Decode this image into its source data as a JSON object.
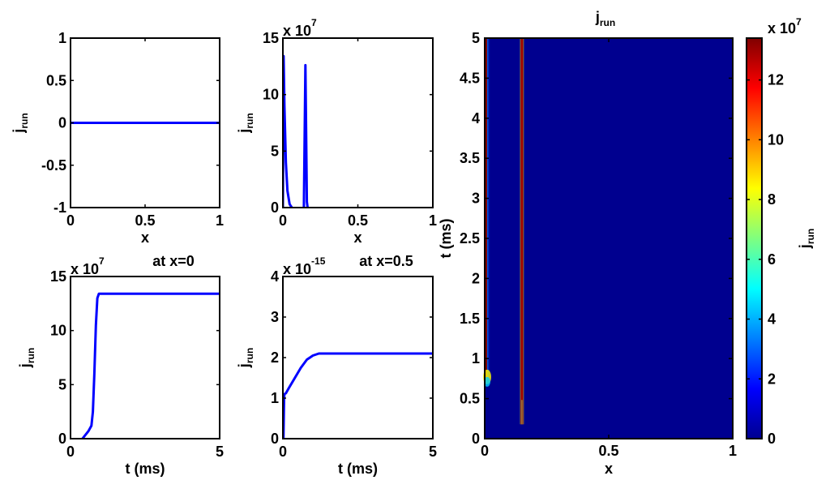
{
  "chart_data": [
    {
      "type": "line",
      "panel": "top-left",
      "title": "",
      "xlabel": "x",
      "ylabel": "j",
      "ylabel_sub": "run",
      "xlim": [
        0,
        1
      ],
      "ylim": [
        -1,
        1
      ],
      "xticks": [
        "0",
        "0.5",
        "1"
      ],
      "yticks": [
        "-1",
        "-0.5",
        "0",
        "0.5",
        "1"
      ],
      "exponent": null,
      "color": "#0000ff",
      "series": [
        {
          "x": [
            0,
            1
          ],
          "y": [
            0,
            0
          ]
        }
      ]
    },
    {
      "type": "line",
      "panel": "top-middle",
      "title": "",
      "xlabel": "x",
      "ylabel": "j",
      "ylabel_sub": "run",
      "xlim": [
        0,
        1
      ],
      "ylim": [
        0,
        15
      ],
      "xticks": [
        "0",
        "0.5",
        "1"
      ],
      "yticks": [
        "0",
        "5",
        "10",
        "15"
      ],
      "exponent": {
        "base": "x 10",
        "power": "7"
      },
      "color": "#0000ff",
      "series": [
        {
          "x": [
            0,
            0.005,
            0.01,
            0.02,
            0.03,
            0.045,
            0.06
          ],
          "y": [
            0,
            13.4,
            9.0,
            4.0,
            1.5,
            0.3,
            0
          ]
        },
        {
          "x": [
            0.14,
            0.15,
            0.16,
            0.165
          ],
          "y": [
            0,
            12.6,
            0.5,
            0
          ]
        }
      ]
    },
    {
      "type": "line",
      "panel": "bottom-left",
      "title": "at x=0",
      "xlabel": "t (ms)",
      "ylabel": "j",
      "ylabel_sub": "run",
      "xlim": [
        0,
        5
      ],
      "ylim": [
        0,
        15
      ],
      "xticks": [
        "0",
        "5"
      ],
      "yticks": [
        "0",
        "5",
        "10",
        "15"
      ],
      "exponent": {
        "base": "x 10",
        "power": "7"
      },
      "color": "#0000ff",
      "series": [
        {
          "x": [
            0.4,
            0.6,
            0.7,
            0.75,
            0.8,
            0.85,
            0.9,
            0.95,
            1.0,
            1.2,
            5.0
          ],
          "y": [
            0,
            0.7,
            1.2,
            2.5,
            6.0,
            10.5,
            13.0,
            13.4,
            13.4,
            13.4,
            13.4
          ]
        }
      ]
    },
    {
      "type": "line",
      "panel": "bottom-middle",
      "title": "at x=0.5",
      "xlabel": "t (ms)",
      "ylabel": "j",
      "ylabel_sub": "run",
      "xlim": [
        0,
        5
      ],
      "ylim": [
        0,
        4
      ],
      "xticks": [
        "0",
        "5"
      ],
      "yticks": [
        "0",
        "1",
        "2",
        "3",
        "4"
      ],
      "exponent": {
        "base": "x 10",
        "power": "-15"
      },
      "color": "#0000ff",
      "series": [
        {
          "x": [
            0,
            0.02,
            0.04,
            0.05,
            0.1,
            0.2,
            0.4,
            0.6,
            0.8,
            1.0,
            1.2,
            2.0,
            5.0
          ],
          "y": [
            0,
            0,
            1.0,
            1.1,
            1.12,
            1.25,
            1.5,
            1.75,
            1.95,
            2.05,
            2.1,
            2.1,
            2.1
          ]
        }
      ]
    },
    {
      "type": "heatmap",
      "panel": "right",
      "title": "j",
      "title_sub": "run",
      "xlabel": "x",
      "ylabel": "t (ms)",
      "xlim": [
        0,
        1
      ],
      "ylim": [
        0,
        5
      ],
      "xticks": [
        "0",
        "0.5",
        "1"
      ],
      "yticks": [
        "0",
        "0.5",
        "1",
        "1.5",
        "2",
        "2.5",
        "3",
        "3.5",
        "4",
        "4.5",
        "5"
      ],
      "colormap": "jet",
      "background": "#00008f",
      "features": [
        {
          "x_center": 0.012,
          "half_width": 0.012,
          "t_start": 0.75,
          "t_end": 5.0,
          "peak": 13.4
        },
        {
          "x_center": 0.15,
          "half_width": 0.012,
          "t_start": 0.18,
          "t_end": 5.0,
          "peak": 12.6
        }
      ],
      "colorbar": {
        "label": "j",
        "label_sub": "run",
        "range": [
          0,
          13.4
        ],
        "ticks": [
          "0",
          "2",
          "4",
          "6",
          "8",
          "10",
          "12"
        ],
        "exponent": {
          "base": "x 10",
          "power": "7"
        }
      }
    }
  ]
}
